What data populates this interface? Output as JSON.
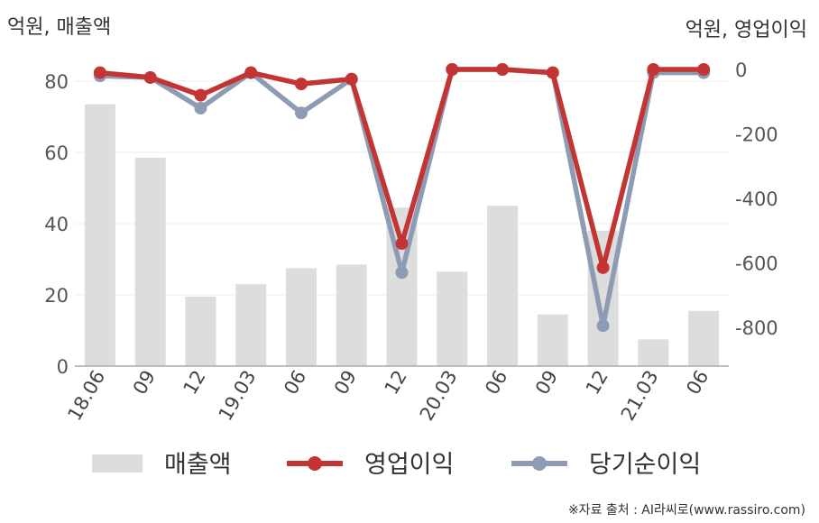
{
  "chart_data": {
    "type": "bar+line",
    "left_axis_unit": "억원, 매출액",
    "right_axis_unit": "억원, 영업이익",
    "categories": [
      "18.06",
      "09",
      "12",
      "19.03",
      "06",
      "09",
      "12",
      "20.03",
      "06",
      "09",
      "12",
      "21.03",
      "06"
    ],
    "left_ylim": [
      0,
      80
    ],
    "left_ticks": [
      0,
      20,
      40,
      60,
      80
    ],
    "right_ylim": [
      -900,
      0
    ],
    "right_ticks": [
      0,
      -200,
      -400,
      -600,
      -800
    ],
    "grid": true,
    "legend_position": "bottom",
    "series": [
      {
        "name": "매출액",
        "type": "bar",
        "axis": "left",
        "color": "#dddddd",
        "values": [
          73.5,
          58.5,
          19.5,
          23,
          27.5,
          28.5,
          44.5,
          26.5,
          45,
          14.5,
          38,
          7.5,
          15.5
        ]
      },
      {
        "name": "영업이익",
        "type": "line",
        "axis": "right",
        "color": "#c23533",
        "values": [
          -10,
          -25,
          -80,
          -10,
          -45,
          -30,
          -540,
          0,
          0,
          -10,
          -615,
          0,
          0
        ]
      },
      {
        "name": "당기순이익",
        "type": "line",
        "axis": "right",
        "color": "#8e9bb5",
        "values": [
          -20,
          -25,
          -120,
          -10,
          -135,
          -30,
          -630,
          0,
          0,
          -10,
          -795,
          -10,
          -10
        ]
      }
    ]
  },
  "legend": [
    {
      "label": "매출액",
      "color": "#dddddd",
      "kind": "bar"
    },
    {
      "label": "영업이익",
      "color": "#c23533",
      "kind": "line"
    },
    {
      "label": "당기순이익",
      "color": "#8e9bb5",
      "kind": "line"
    }
  ],
  "source_text": "※자료 출처 : AI라씨로(www.rassiro.com)"
}
